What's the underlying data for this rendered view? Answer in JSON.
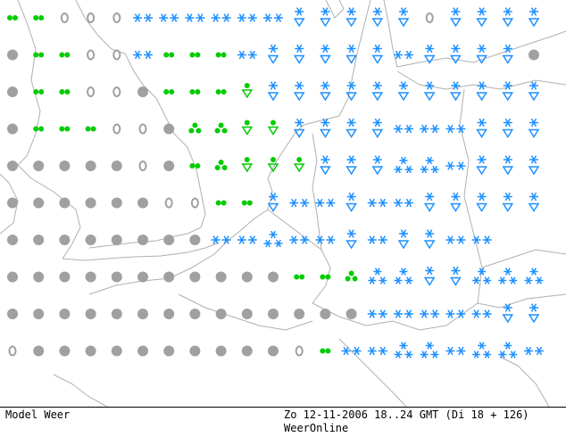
{
  "footer": {
    "model_label": "Model Weer",
    "datetime": "Zo 12-11-2006 18..24 GMT (Di 18 + 126)",
    "brand": "WeerOnline"
  },
  "colors": {
    "coast": "#b0b0b0",
    "snow": "#1e90ff",
    "rain": "#00cc00",
    "cloud": "#a0a0a0"
  },
  "legend_symbols": [
    "dense-cloud",
    "light-cloud",
    "rain-light",
    "rain-showers",
    "rain-heavy",
    "snow",
    "snow-showers",
    "snow-heavy"
  ],
  "grid": [
    [
      "rain-light",
      "rain-light",
      "light-cloud",
      "light-cloud",
      "light-cloud",
      "snow",
      "snow",
      "snow",
      "snow",
      "snow",
      "snow",
      "snow-showers",
      "snow-showers",
      "snow-showers",
      "snow-showers",
      "snow-showers",
      "light-cloud",
      "snow-showers",
      "snow-showers",
      "snow-showers",
      "snow-showers",
      "none"
    ],
    [
      "dense-cloud",
      "rain-light",
      "rain-light",
      "light-cloud",
      "light-cloud",
      "snow",
      "rain-light",
      "rain-light",
      "rain-light",
      "snow",
      "snow-showers",
      "snow-showers",
      "snow-showers",
      "snow-showers",
      "snow-showers",
      "snow",
      "snow-showers",
      "snow-showers",
      "snow-showers",
      "snow-showers",
      "dense-cloud",
      "none"
    ],
    [
      "dense-cloud",
      "rain-light",
      "rain-light",
      "light-cloud",
      "light-cloud",
      "dense-cloud",
      "rain-light",
      "rain-light",
      "rain-light",
      "rain-showers",
      "snow-showers",
      "snow-showers",
      "snow-showers",
      "snow-showers",
      "snow-showers",
      "snow-showers",
      "snow-showers",
      "snow-showers",
      "snow-showers",
      "snow-showers",
      "snow-showers",
      "none"
    ],
    [
      "dense-cloud",
      "rain-light",
      "rain-light",
      "rain-light",
      "light-cloud",
      "light-cloud",
      "dense-cloud",
      "rain-heavy",
      "rain-heavy",
      "rain-showers",
      "rain-showers",
      "snow-showers",
      "snow-showers",
      "snow-showers",
      "snow-showers",
      "snow",
      "snow",
      "snow",
      "snow-showers",
      "snow-showers",
      "snow-showers",
      "none"
    ],
    [
      "dense-cloud",
      "dense-cloud",
      "dense-cloud",
      "dense-cloud",
      "dense-cloud",
      "light-cloud",
      "dense-cloud",
      "rain-light",
      "rain-heavy",
      "rain-showers",
      "rain-showers",
      "rain-showers",
      "snow-showers",
      "snow-showers",
      "snow-showers",
      "snow-heavy",
      "snow-heavy",
      "snow",
      "snow-showers",
      "snow-showers",
      "snow-showers",
      "none"
    ],
    [
      "dense-cloud",
      "dense-cloud",
      "dense-cloud",
      "dense-cloud",
      "dense-cloud",
      "dense-cloud",
      "light-cloud",
      "light-cloud",
      "rain-light",
      "rain-light",
      "snow-showers",
      "snow",
      "snow",
      "snow-showers",
      "snow",
      "snow",
      "snow-showers",
      "snow-showers",
      "snow-showers",
      "snow-showers",
      "snow-showers",
      "none"
    ],
    [
      "dense-cloud",
      "dense-cloud",
      "dense-cloud",
      "dense-cloud",
      "dense-cloud",
      "dense-cloud",
      "dense-cloud",
      "dense-cloud",
      "snow",
      "snow",
      "snow-heavy",
      "snow",
      "snow",
      "snow-showers",
      "snow",
      "snow-showers",
      "snow-showers",
      "snow",
      "snow",
      "none",
      "none",
      "none"
    ],
    [
      "dense-cloud",
      "dense-cloud",
      "dense-cloud",
      "dense-cloud",
      "dense-cloud",
      "dense-cloud",
      "dense-cloud",
      "dense-cloud",
      "dense-cloud",
      "dense-cloud",
      "dense-cloud",
      "rain-light",
      "rain-light",
      "rain-heavy",
      "snow-heavy",
      "snow-heavy",
      "snow-showers",
      "snow-showers",
      "snow-heavy",
      "snow-heavy",
      "snow-heavy",
      "none"
    ],
    [
      "dense-cloud",
      "dense-cloud",
      "dense-cloud",
      "dense-cloud",
      "dense-cloud",
      "dense-cloud",
      "dense-cloud",
      "dense-cloud",
      "dense-cloud",
      "dense-cloud",
      "dense-cloud",
      "dense-cloud",
      "dense-cloud",
      "dense-cloud",
      "snow",
      "snow",
      "snow",
      "snow",
      "snow",
      "snow-showers",
      "snow-showers",
      "none"
    ],
    [
      "light-cloud",
      "dense-cloud",
      "dense-cloud",
      "dense-cloud",
      "dense-cloud",
      "dense-cloud",
      "dense-cloud",
      "dense-cloud",
      "dense-cloud",
      "dense-cloud",
      "dense-cloud",
      "light-cloud",
      "rain-light",
      "snow",
      "snow",
      "snow-heavy",
      "snow-heavy",
      "snow",
      "snow-heavy",
      "snow-heavy",
      "snow",
      "none"
    ]
  ]
}
